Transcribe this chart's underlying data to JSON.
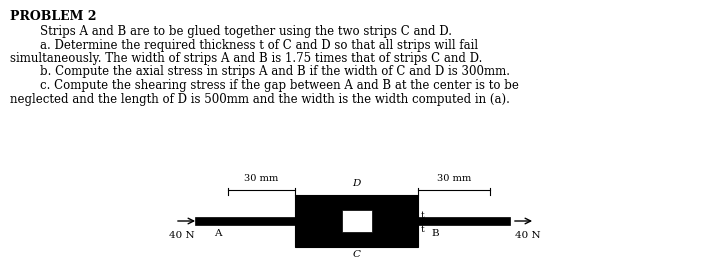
{
  "title": "PROBLEM 2",
  "line0": "        Strips A and B are to be glued together using the two strips C and D.",
  "line1": "        a. Determine the required thickness t of C and D so that all strips will fail",
  "line2": "simultaneously. The width of strips A and B is 1.75 times that of strips C and D.",
  "line3": "        b. Compute the axial stress in strips A and B if the width of C and D is 300mm.",
  "line4": "        c. Compute the shearing stress if the gap between A and B at the center is to be",
  "line5": "neglected and the length of D is 500mm and the width is the width computed in (a).",
  "bg_color": "#ffffff",
  "text_color": "#000000",
  "font_size": 8.5,
  "title_font_size": 9.0,
  "force_label": "40 N",
  "label_30mm_left": "30 mm",
  "label_30mm_right": "30 mm",
  "label_D": "D",
  "label_C": "C",
  "label_A": "A",
  "label_B": "B",
  "label_t": "t"
}
